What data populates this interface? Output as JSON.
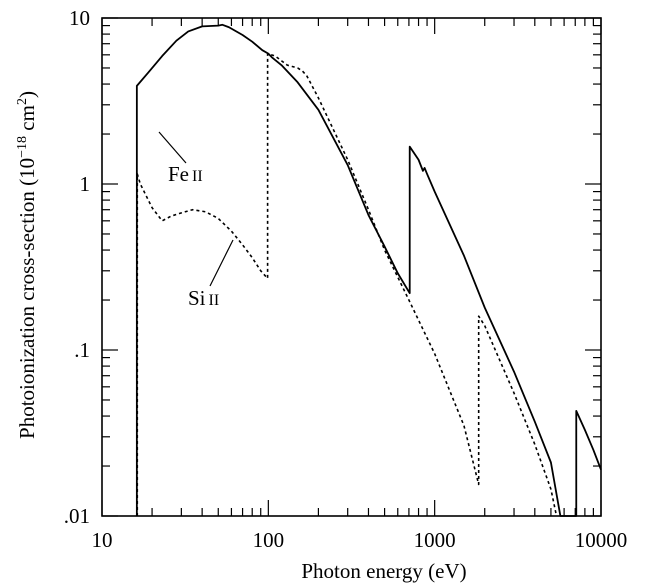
{
  "chart_data": {
    "type": "line",
    "title": "",
    "xlabel": "Photon energy  (eV)",
    "ylabel": {
      "main": "Photoionization cross-section  (10",
      "exp": "−18",
      "unit": " cm",
      "unit_exp": "2",
      "close": ")"
    },
    "xscale": "log",
    "yscale": "log",
    "xlim": [
      10,
      10000
    ],
    "ylim": [
      0.01,
      10
    ],
    "xticks": [
      {
        "value": 10,
        "label": "10"
      },
      {
        "value": 100,
        "label": "100"
      },
      {
        "value": 1000,
        "label": "1000"
      },
      {
        "value": 10000,
        "label": "10000"
      }
    ],
    "yticks": [
      {
        "value": 0.01,
        "label": ".01"
      },
      {
        "value": 0.1,
        "label": ".1"
      },
      {
        "value": 1,
        "label": "1"
      },
      {
        "value": 10,
        "label": "10"
      }
    ],
    "grid": false,
    "series": [
      {
        "name": "Fe II",
        "label_main": "Fe",
        "label_ion": "II",
        "style": "solid",
        "color": "#000000",
        "points": [
          [
            16.2,
            0.01
          ],
          [
            16.2,
            3.9
          ],
          [
            19,
            4.7
          ],
          [
            23,
            5.9
          ],
          [
            28,
            7.3
          ],
          [
            33,
            8.3
          ],
          [
            40,
            8.9
          ],
          [
            50,
            9.0
          ],
          [
            53,
            9.1
          ],
          [
            58,
            8.8
          ],
          [
            70,
            7.9
          ],
          [
            80,
            7.2
          ],
          [
            92,
            6.4
          ],
          [
            100,
            6.1
          ],
          [
            105,
            5.8
          ],
          [
            120,
            5.2
          ],
          [
            150,
            4.1
          ],
          [
            200,
            2.8
          ],
          [
            300,
            1.3
          ],
          [
            400,
            0.65
          ],
          [
            500,
            0.42
          ],
          [
            600,
            0.29
          ],
          [
            708,
            0.22
          ],
          [
            708,
            1.68
          ],
          [
            800,
            1.4
          ],
          [
            850,
            1.2
          ],
          [
            870,
            1.25
          ],
          [
            900,
            1.15
          ],
          [
            1000,
            0.9
          ],
          [
            1500,
            0.37
          ],
          [
            2000,
            0.18
          ],
          [
            3000,
            0.074
          ],
          [
            4000,
            0.037
          ],
          [
            5000,
            0.021
          ],
          [
            5700,
            0.01
          ],
          [
            7100,
            0.01
          ],
          [
            7100,
            0.043
          ],
          [
            8000,
            0.033
          ],
          [
            9000,
            0.025
          ],
          [
            10000,
            0.019
          ]
        ]
      },
      {
        "name": "Si II",
        "label_main": "Si",
        "label_ion": "II",
        "style": "dotted",
        "color": "#000000",
        "points": [
          [
            16.3,
            0.01
          ],
          [
            16.3,
            1.15
          ],
          [
            17,
            1.0
          ],
          [
            20,
            0.72
          ],
          [
            23,
            0.6
          ],
          [
            26,
            0.64
          ],
          [
            30,
            0.67
          ],
          [
            35,
            0.7
          ],
          [
            42,
            0.68
          ],
          [
            50,
            0.62
          ],
          [
            60,
            0.52
          ],
          [
            70,
            0.43
          ],
          [
            80,
            0.36
          ],
          [
            90,
            0.3
          ],
          [
            99,
            0.27
          ],
          [
            99,
            6.1
          ],
          [
            110,
            5.9
          ],
          [
            130,
            5.2
          ],
          [
            150,
            5.0
          ],
          [
            160,
            4.8
          ],
          [
            170,
            4.5
          ],
          [
            200,
            3.3
          ],
          [
            300,
            1.4
          ],
          [
            400,
            0.7
          ],
          [
            500,
            0.4
          ],
          [
            700,
            0.2
          ],
          [
            1000,
            0.095
          ],
          [
            1500,
            0.035
          ],
          [
            1839,
            0.0155
          ],
          [
            1839,
            0.16
          ],
          [
            2000,
            0.14
          ],
          [
            3000,
            0.055
          ],
          [
            4000,
            0.027
          ],
          [
            5000,
            0.0145
          ],
          [
            5400,
            0.01
          ]
        ]
      }
    ]
  }
}
